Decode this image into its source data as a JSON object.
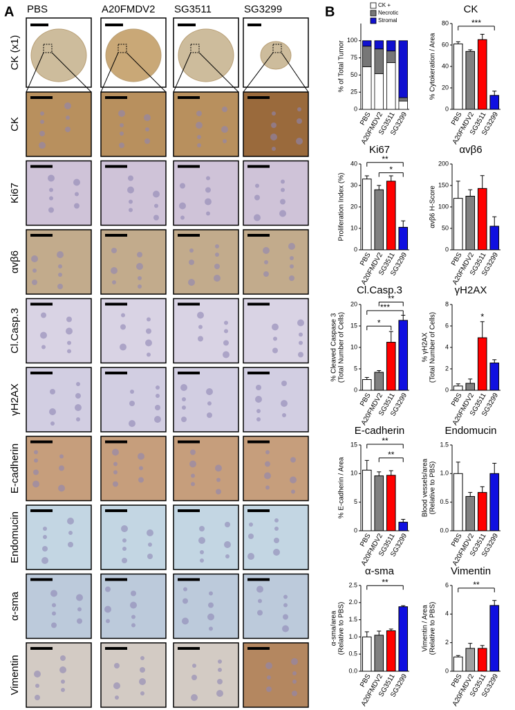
{
  "panel_a": {
    "label": "A",
    "columns": [
      "PBS",
      "A20FMDV2",
      "SG3511",
      "SG3299"
    ],
    "rows": [
      "CK (x1)",
      "CK",
      "Ki67",
      "αvβ6",
      "Cl.Casp.3",
      "γH2AX",
      "E-cadherin",
      "Endomucin",
      "α-sma",
      "Vimentin"
    ]
  },
  "panel_b": {
    "label": "B"
  },
  "chart_data": [
    {
      "type": "stacked_bar",
      "ylabel": [
        "% of Total Tumor"
      ],
      "categories": [
        "PBS",
        "A20FMDV2",
        "SG3511",
        "SG3299"
      ],
      "series": [
        {
          "name": "CK +",
          "color": "#ffffff",
          "values": [
            62,
            52,
            68,
            12
          ]
        },
        {
          "name": "Necrotic",
          "color": "#777777",
          "values": [
            30,
            36,
            17,
            5
          ]
        },
        {
          "name": "Stromal",
          "color": "#1010d0",
          "values": [
            8,
            12,
            15,
            83
          ]
        }
      ],
      "ylim": [
        0,
        125
      ],
      "yticks": [
        0,
        25,
        50,
        75,
        100
      ],
      "legend": "upper right"
    },
    {
      "type": "bar",
      "title": "CK",
      "ylabel": [
        "% Cytokeration / Area"
      ],
      "categories": [
        "PBS",
        "A20FMDV2",
        "SG3511",
        "SG3299"
      ],
      "values": [
        61,
        54,
        65,
        13
      ],
      "errors": [
        2,
        1.5,
        5,
        4
      ],
      "colors": [
        "#ffffff",
        "#808080",
        "#ff0000",
        "#1010e0"
      ],
      "ylim": [
        0,
        80
      ],
      "yticks": [
        0,
        20,
        40,
        60,
        80
      ],
      "annotations": [
        "***"
      ]
    },
    {
      "type": "bar",
      "title": "Ki67",
      "ylabel": [
        "Proliferation Index (%)"
      ],
      "categories": [
        "PBS",
        "A20FMDV2",
        "SG3511",
        "SG3299"
      ],
      "values": [
        33,
        28,
        32,
        10.5
      ],
      "errors": [
        1.5,
        2,
        2.5,
        3
      ],
      "colors": [
        "#ffffff",
        "#808080",
        "#ff0000",
        "#1010e0"
      ],
      "ylim": [
        0,
        40
      ],
      "yticks": [
        0,
        10,
        20,
        30,
        40
      ],
      "annotations": [
        "**",
        "*"
      ]
    },
    {
      "type": "bar",
      "title": "αvβ6",
      "ylabel": [
        "αvβ6 H-Score"
      ],
      "categories": [
        "PBS",
        "A20FMDV2",
        "SG3511",
        "SG3299"
      ],
      "values": [
        120,
        125,
        143,
        55
      ],
      "errors": [
        40,
        15,
        30,
        22
      ],
      "colors": [
        "#ffffff",
        "#808080",
        "#ff0000",
        "#1010e0"
      ],
      "ylim": [
        0,
        200
      ],
      "yticks": [
        0,
        50,
        100,
        150,
        200
      ]
    },
    {
      "type": "bar",
      "title": "Cl.Casp.3",
      "ylabel": [
        "% Cleaved Caspase 3",
        "(Total Number of Cells)"
      ],
      "categories": [
        "PBS",
        "A20FMDV2",
        "SG3511",
        "SG3299"
      ],
      "values": [
        2.5,
        4.2,
        11.2,
        16.3
      ],
      "errors": [
        0.5,
        0.4,
        2.5,
        1.2
      ],
      "colors": [
        "#ffffff",
        "#808080",
        "#ff0000",
        "#1010e0"
      ],
      "ylim": [
        0,
        20
      ],
      "yticks": [
        0,
        5,
        10,
        15,
        20
      ],
      "annotations": [
        "**",
        "***",
        "*"
      ]
    },
    {
      "type": "bar",
      "title": "γH2AX",
      "ylabel": [
        "% γH2AX",
        "(Total Number of Cells)"
      ],
      "categories": [
        "PBS",
        "A20FMDV2",
        "SG3511",
        "SG3299"
      ],
      "values": [
        0.4,
        0.65,
        4.9,
        2.55
      ],
      "errors": [
        0.2,
        0.4,
        1.5,
        0.3
      ],
      "colors": [
        "#ffffff",
        "#808080",
        "#ff0000",
        "#1010e0"
      ],
      "ylim": [
        0,
        8
      ],
      "yticks": [
        0,
        2,
        4,
        6,
        8
      ],
      "annotations": [
        "*"
      ]
    },
    {
      "type": "bar",
      "title": "E-cadherin",
      "ylabel": [
        "% E-cadherin / Area"
      ],
      "categories": [
        "PBS",
        "A20FMDV2",
        "SG3511",
        "SG3299"
      ],
      "values": [
        10.6,
        9.6,
        9.7,
        1.5
      ],
      "errors": [
        1.7,
        0.7,
        0.8,
        0.5
      ],
      "colors": [
        "#ffffff",
        "#808080",
        "#ff0000",
        "#1010e0"
      ],
      "ylim": [
        0,
        15
      ],
      "yticks": [
        0,
        5,
        10,
        15
      ],
      "annotations": [
        "**",
        "**"
      ]
    },
    {
      "type": "bar",
      "title": "Endomucin",
      "ylabel": [
        "Blood vessels/area",
        "(Relative to PBS)"
      ],
      "categories": [
        "PBS",
        "A20FMDV2",
        "SG3511",
        "SG3299"
      ],
      "values": [
        1.0,
        0.6,
        0.67,
        1.0
      ],
      "errors": [
        0.2,
        0.07,
        0.1,
        0.18
      ],
      "colors": [
        "#ffffff",
        "#808080",
        "#ff0000",
        "#1010e0"
      ],
      "ylim": [
        0,
        1.5
      ],
      "yticks": [
        {
          "value": 0,
          "label": "0.0"
        },
        0.5,
        {
          "value": 1,
          "label": "1.0"
        },
        1.5
      ]
    },
    {
      "type": "bar",
      "title": "α-sma",
      "ylabel": [
        "α-sma/area",
        "(Relative to PBS)"
      ],
      "categories": [
        "PBS",
        "A20FMDV2",
        "SG3511",
        "SG3299"
      ],
      "values": [
        1.0,
        1.05,
        1.18,
        1.88
      ],
      "errors": [
        0.15,
        0.12,
        0.05,
        0.03
      ],
      "colors": [
        "#ffffff",
        "#808080",
        "#ff0000",
        "#1010e0"
      ],
      "ylim": [
        0,
        2.5
      ],
      "yticks": [
        {
          "value": 0,
          "label": "0.0"
        },
        0.5,
        {
          "value": 1,
          "label": "1.0"
        },
        1.5,
        {
          "value": 2,
          "label": "2.0"
        },
        2.5
      ],
      "annotations": [
        "**"
      ]
    },
    {
      "type": "bar",
      "title": "Vimentin",
      "ylabel": [
        "Vimentin / Area",
        "(Relative to PBS)"
      ],
      "categories": [
        "PBS",
        "A20FMDV2",
        "SG3511",
        "SG3299"
      ],
      "values": [
        1.0,
        1.6,
        1.6,
        4.6
      ],
      "errors": [
        0.1,
        0.35,
        0.2,
        0.35
      ],
      "colors": [
        "#ffffff",
        "#a0a0a0",
        "#ff0000",
        "#1010e0"
      ],
      "ylim": [
        0,
        6
      ],
      "yticks": [
        0,
        2,
        4,
        6
      ],
      "annotations": [
        "**"
      ]
    }
  ]
}
